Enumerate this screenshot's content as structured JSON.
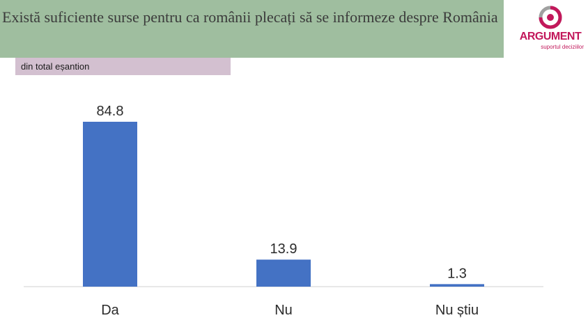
{
  "header": {
    "title": "Există suficiente surse pentru ca românii plecați să se informeze despre România",
    "subtitle": "din total eșantion"
  },
  "logo": {
    "name": "ARGUMENT",
    "tagline": "suportul deciziilor",
    "color": "#c2185b"
  },
  "colors": {
    "title_band": "#9fbe9f",
    "subtitle_band": "#d3c0d0",
    "bar": "#4472c4"
  },
  "chart_data": {
    "type": "bar",
    "title": "Există suficiente surse pentru ca românii plecați să se informeze despre România",
    "subtitle": "din total eșantion",
    "categories": [
      "Da",
      "Nu",
      "Nu știu"
    ],
    "values": [
      84.8,
      13.9,
      1.3
    ],
    "xlabel": "",
    "ylabel": "",
    "ylim": [
      0,
      84.8
    ],
    "grid": false,
    "legend": "none",
    "data_labels": true
  }
}
